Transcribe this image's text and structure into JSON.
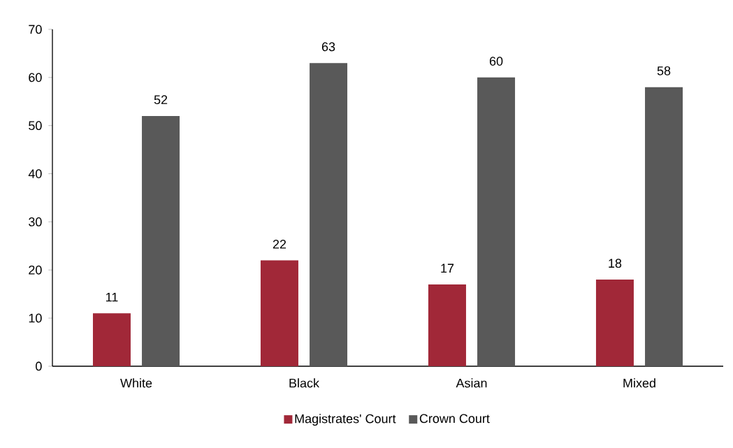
{
  "chart_data": {
    "type": "bar",
    "categories": [
      "White",
      "Black",
      "Asian",
      "Mixed"
    ],
    "series": [
      {
        "name": "Magistrates' Court",
        "color": "#a12838",
        "values": [
          11,
          22,
          17,
          18
        ]
      },
      {
        "name": "Crown Court",
        "color": "#595959",
        "values": [
          52,
          63,
          60,
          58
        ]
      }
    ],
    "ylim": [
      0,
      70
    ],
    "yticks": [
      0,
      10,
      20,
      30,
      40,
      50,
      60,
      70
    ],
    "data_labels": true,
    "grid": false,
    "legend": "bottom"
  }
}
